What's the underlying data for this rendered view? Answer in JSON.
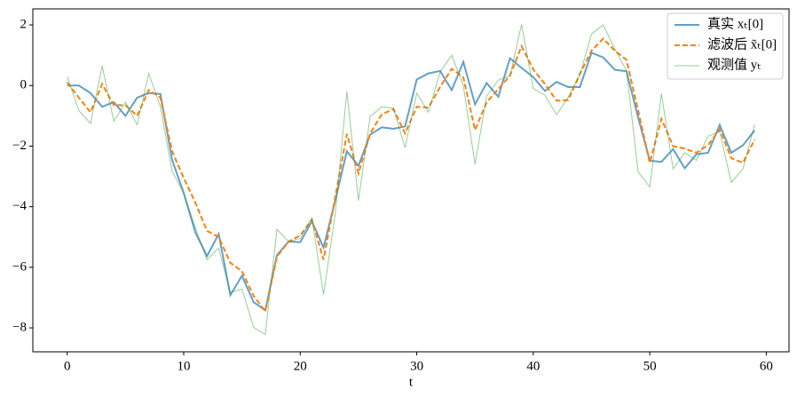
{
  "chart_data": {
    "type": "line",
    "xlabel": "t",
    "x": [
      0,
      1,
      2,
      3,
      4,
      5,
      6,
      7,
      8,
      9,
      10,
      11,
      12,
      13,
      14,
      15,
      16,
      17,
      18,
      19,
      20,
      21,
      22,
      23,
      24,
      25,
      26,
      27,
      28,
      29,
      30,
      31,
      32,
      33,
      34,
      35,
      36,
      37,
      38,
      39,
      40,
      41,
      42,
      43,
      44,
      45,
      46,
      47,
      48,
      49,
      50,
      51,
      52,
      53,
      54,
      55,
      56,
      57,
      58,
      59
    ],
    "series": [
      {
        "name": "真实 xₜ[0]",
        "color": "#1f77b4",
        "linestyle": "solid",
        "values": [
          0,
          0,
          -0.25,
          -0.7,
          -0.55,
          -1.0,
          -0.4,
          -0.25,
          -0.28,
          -2.45,
          -3.55,
          -4.85,
          -5.63,
          -4.9,
          -6.92,
          -6.28,
          -7.15,
          -7.42,
          -5.6,
          -5.15,
          -5.17,
          -4.48,
          -5.35,
          -3.8,
          -2.17,
          -2.65,
          -1.62,
          -1.38,
          -1.43,
          -1.35,
          0.2,
          0.4,
          0.48,
          -0.15,
          0.78,
          -0.62,
          0.08,
          -0.37,
          0.9,
          0.58,
          0.28,
          -0.18,
          0.12,
          -0.05,
          -0.05,
          1.08,
          0.93,
          0.52,
          0.47,
          -1.05,
          -2.48,
          -2.52,
          -2.1,
          -2.73,
          -2.27,
          -2.22,
          -1.3,
          -2.22,
          -1.97,
          -1.48
        ]
      },
      {
        "name": "滤波后 x̃ₜ[0]",
        "color": "#ff7f0e",
        "linestyle": "dashed",
        "values": [
          0.1,
          -0.4,
          -0.88,
          0.05,
          -0.65,
          -0.65,
          -1.0,
          -0.15,
          -0.4,
          -2.17,
          -3.05,
          -3.87,
          -4.8,
          -5.0,
          -5.85,
          -6.13,
          -6.95,
          -7.45,
          -5.65,
          -5.15,
          -4.95,
          -4.43,
          -5.75,
          -3.7,
          -1.6,
          -2.9,
          -1.58,
          -0.95,
          -0.78,
          -1.58,
          -0.7,
          -0.73,
          -0.05,
          0.55,
          0.27,
          -1.47,
          -0.55,
          -0.12,
          0.33,
          1.3,
          0.53,
          0.05,
          -0.5,
          -0.48,
          0.38,
          1.15,
          1.55,
          1.15,
          0.85,
          -0.83,
          -2.55,
          -1.1,
          -2.0,
          -2.08,
          -2.22,
          -1.97,
          -1.45,
          -2.4,
          -2.55,
          -1.78
        ]
      },
      {
        "name": "观测值 yₜ",
        "color": "#2ca02c",
        "linestyle": "solid",
        "values": [
          0.3,
          -0.83,
          -1.25,
          0.65,
          -1.18,
          -0.55,
          -1.3,
          0.4,
          -0.7,
          -2.83,
          -3.55,
          -4.7,
          -5.75,
          -5.37,
          -6.83,
          -6.72,
          -7.98,
          -8.22,
          -4.75,
          -5.15,
          -5.05,
          -4.37,
          -6.9,
          -4.25,
          -0.2,
          -3.8,
          -1.02,
          -0.7,
          -0.75,
          -2.05,
          -0.25,
          -0.88,
          0.45,
          1.0,
          0.0,
          -2.6,
          -0.35,
          0.18,
          0.32,
          2.02,
          -0.1,
          -0.32,
          -0.97,
          -0.38,
          0.35,
          1.7,
          2.0,
          1.2,
          0.5,
          -2.85,
          -3.35,
          -0.27,
          -2.75,
          -2.22,
          -2.47,
          -1.67,
          -1.53,
          -3.2,
          -2.75,
          -1.28
        ]
      }
    ],
    "xlim": [
      -2.95,
      61.95
    ],
    "xticks": [
      0,
      10,
      20,
      30,
      40,
      50,
      60
    ],
    "ylim": [
      -8.79,
      2.53
    ],
    "yticks": [
      {
        "value": -8,
        "label": "−8"
      },
      {
        "value": -6,
        "label": "−6"
      },
      {
        "value": -4,
        "label": "−4"
      },
      {
        "value": -2,
        "label": "−2"
      },
      0,
      2
    ],
    "legend": "upper right"
  }
}
